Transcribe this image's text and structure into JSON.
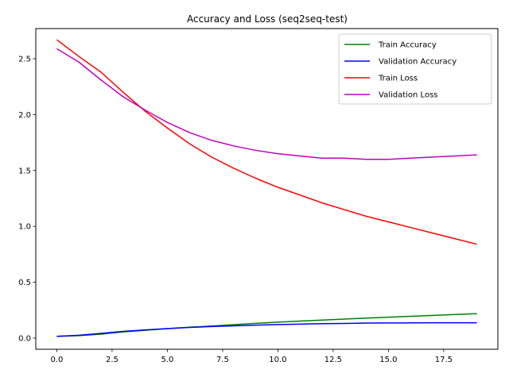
{
  "chart_data": {
    "type": "line",
    "title": "Accuracy and Loss (seq2seq-test)",
    "xlabel": "",
    "ylabel": "",
    "xlim": [
      -0.95,
      19.95
    ],
    "ylim": [
      -0.1,
      2.77
    ],
    "x_ticks": [
      0.0,
      2.5,
      5.0,
      7.5,
      10.0,
      12.5,
      15.0,
      17.5
    ],
    "x_tick_labels": [
      "0.0",
      "2.5",
      "5.0",
      "7.5",
      "10.0",
      "12.5",
      "15.0",
      "17.5"
    ],
    "y_ticks": [
      0.0,
      0.5,
      1.0,
      1.5,
      2.0,
      2.5
    ],
    "y_tick_labels": [
      "0.0",
      "0.5",
      "1.0",
      "1.5",
      "2.0",
      "2.5"
    ],
    "grid": false,
    "legend_position": "top-right",
    "x": [
      0,
      1,
      2,
      3,
      4,
      5,
      6,
      7,
      8,
      9,
      10,
      11,
      12,
      13,
      14,
      15,
      16,
      17,
      18,
      19
    ],
    "series": [
      {
        "name": "Train Accuracy",
        "color": "#008000",
        "values": [
          0.015,
          0.022,
          0.035,
          0.055,
          0.07,
          0.085,
          0.097,
          0.108,
          0.12,
          0.132,
          0.142,
          0.152,
          0.161,
          0.17,
          0.179,
          0.187,
          0.195,
          0.203,
          0.211,
          0.219
        ]
      },
      {
        "name": "Validation Accuracy",
        "color": "#0000ff",
        "values": [
          0.015,
          0.025,
          0.042,
          0.06,
          0.073,
          0.085,
          0.095,
          0.103,
          0.11,
          0.116,
          0.121,
          0.125,
          0.129,
          0.131,
          0.134,
          0.135,
          0.136,
          0.137,
          0.137,
          0.137
        ]
      },
      {
        "name": "Train Loss",
        "color": "#ff0000",
        "values": [
          2.67,
          2.52,
          2.38,
          2.2,
          2.03,
          1.88,
          1.74,
          1.62,
          1.52,
          1.43,
          1.35,
          1.28,
          1.21,
          1.15,
          1.09,
          1.04,
          0.99,
          0.94,
          0.89,
          0.84
        ]
      },
      {
        "name": "Validation Loss",
        "color": "#bf00bf",
        "values": [
          2.59,
          2.47,
          2.31,
          2.16,
          2.04,
          1.93,
          1.84,
          1.77,
          1.72,
          1.68,
          1.65,
          1.63,
          1.61,
          1.61,
          1.6,
          1.6,
          1.61,
          1.62,
          1.63,
          1.64
        ]
      }
    ]
  }
}
